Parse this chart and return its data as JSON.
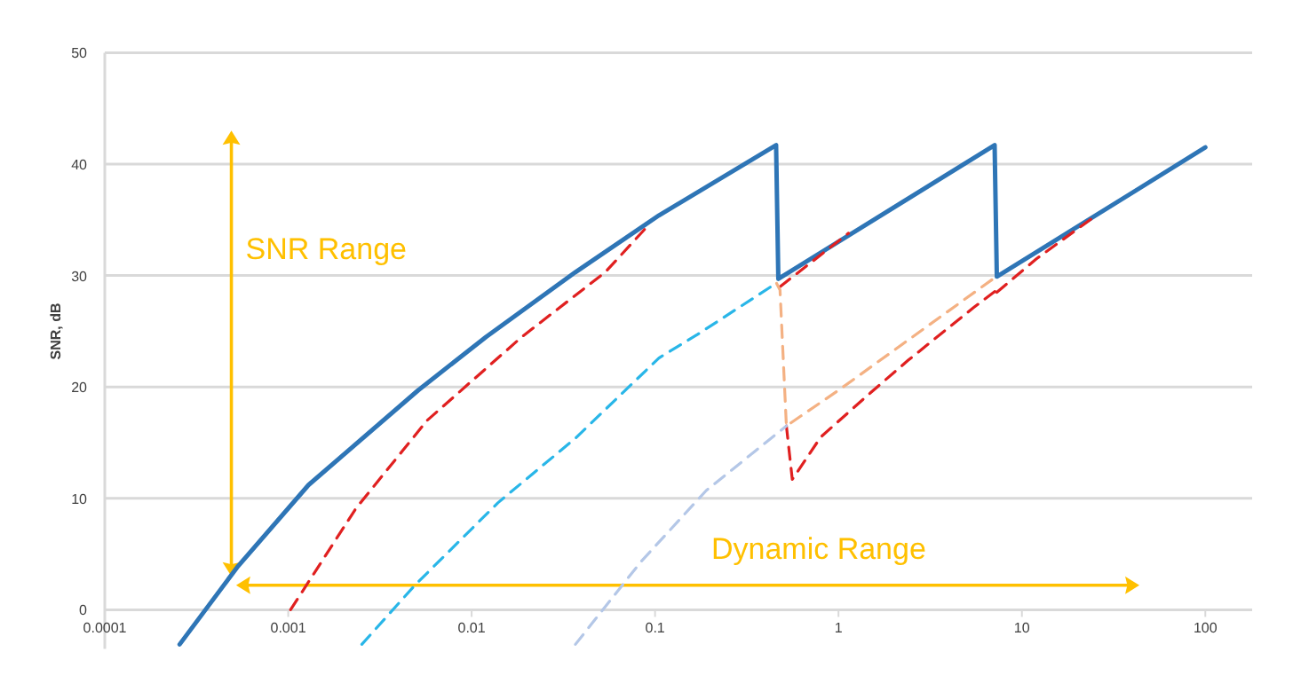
{
  "chart_data": {
    "type": "line",
    "ylabel": "SNR, dB",
    "log": "x",
    "grid": "y",
    "xlim": [
      0.0001,
      180
    ],
    "xticks": [
      0.0001,
      0.001,
      0.01,
      0.1,
      1,
      10,
      100
    ],
    "ylim": [
      -3.5,
      50
    ],
    "yticks": [
      0,
      10,
      20,
      30,
      40,
      50
    ],
    "annotations": [
      "SNR Range",
      "Dynamic Range"
    ],
    "series": [
      {
        "color": "#2e75b6",
        "line_style": "solid",
        "x": [
          0.000256,
          0.000526,
          0.00129,
          0.00511,
          0.012,
          0.0368,
          0.105,
          0.457,
          0.47,
          7.1,
          7.3,
          100
        ],
        "values": [
          -3.1,
          3.8,
          11.2,
          19.7,
          24.5,
          30.3,
          35.4,
          41.7,
          29.7,
          41.7,
          29.9,
          41.5
        ]
      },
      {
        "color": "#e02020",
        "line_style": "dashed",
        "x": [
          0.00103,
          0.00234,
          0.00572,
          0.0188,
          0.0535,
          0.093,
          null,
          0.48,
          1.135,
          null,
          0.52,
          0.56,
          0.8,
          1.5,
          2.4,
          5.43,
          7.3,
          null,
          7.3,
          12,
          24
        ],
        "values": [
          0,
          9.1,
          17,
          24.5,
          30.3,
          34.6,
          null,
          29,
          33.8,
          null,
          16.5,
          11.7,
          15.5,
          19.5,
          22.4,
          27.1,
          28.7,
          null,
          28.5,
          31.5,
          35.1
        ]
      },
      {
        "color": "#29b6e8",
        "line_style": "dashed",
        "x": [
          0.00252,
          0.0049,
          0.0139,
          0.0368,
          0.105,
          0.17,
          0.457
        ],
        "values": [
          -3.1,
          2.2,
          9.6,
          15.4,
          22.6,
          24.7,
          29.3
        ]
      },
      {
        "color": "#f4b183",
        "line_style": "dashed",
        "x": [
          0.46,
          0.48,
          0.52,
          1,
          7.1
        ],
        "values": [
          29.3,
          28.7,
          16.5,
          19.7,
          29.8
        ]
      },
      {
        "color": "#b4c7e7",
        "line_style": "dashed",
        "x": [
          0.0368,
          0.0836,
          0.19,
          0.52
        ],
        "values": [
          -3.1,
          4.3,
          10.7,
          16.5
        ]
      }
    ]
  }
}
